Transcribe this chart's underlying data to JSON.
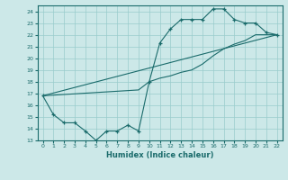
{
  "xlabel": "Humidex (Indice chaleur)",
  "xlim": [
    -0.5,
    22.5
  ],
  "ylim": [
    13,
    24.5
  ],
  "yticks": [
    13,
    14,
    15,
    16,
    17,
    18,
    19,
    20,
    21,
    22,
    23,
    24
  ],
  "xticks": [
    0,
    1,
    2,
    3,
    4,
    5,
    6,
    7,
    8,
    9,
    10,
    11,
    12,
    13,
    14,
    15,
    16,
    17,
    18,
    19,
    20,
    21,
    22
  ],
  "background_color": "#cce8e8",
  "grid_color": "#99cccc",
  "line_color": "#1a6b6b",
  "line1_x": [
    0,
    1,
    2,
    3,
    4,
    5,
    6,
    7,
    8,
    9,
    10,
    11,
    12,
    13,
    14,
    15,
    16,
    17,
    18,
    19,
    20,
    21,
    22
  ],
  "line1_y": [
    16.8,
    15.2,
    14.5,
    14.5,
    13.8,
    13.0,
    13.8,
    13.8,
    14.3,
    13.8,
    18.0,
    21.3,
    22.5,
    23.3,
    23.3,
    23.3,
    24.2,
    24.2,
    23.3,
    23.0,
    23.0,
    22.2,
    22.0
  ],
  "line2_x": [
    0,
    9,
    10,
    11,
    12,
    13,
    14,
    15,
    16,
    17,
    18,
    19,
    20,
    21,
    22
  ],
  "line2_y": [
    16.8,
    17.3,
    18.0,
    18.3,
    18.5,
    18.8,
    19.0,
    19.5,
    20.2,
    20.8,
    21.2,
    21.5,
    22.0,
    22.0,
    22.0
  ],
  "line3_x": [
    0,
    22
  ],
  "line3_y": [
    16.8,
    22.0
  ]
}
